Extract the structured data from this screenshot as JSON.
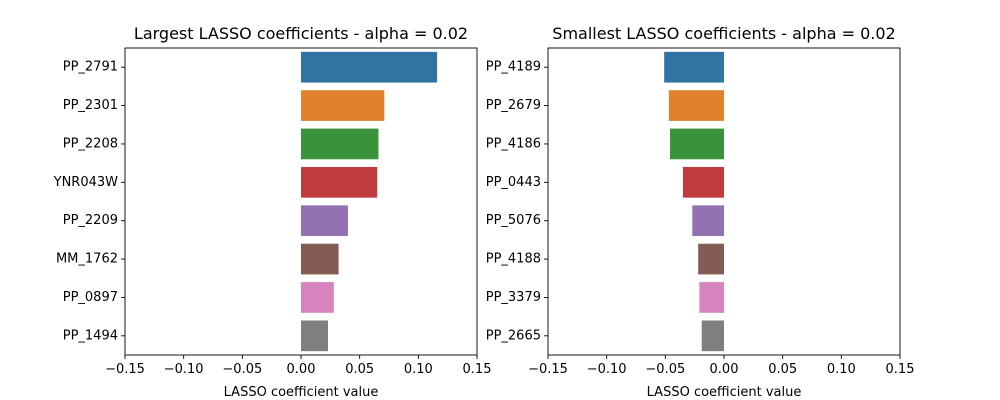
{
  "chart_data": [
    {
      "type": "bar",
      "orientation": "horizontal",
      "title": "Largest LASSO coefficients - alpha = 0.02",
      "xlabel": "LASSO coefficient value",
      "ylabel": "",
      "xlim": [
        -0.15,
        0.15
      ],
      "xticks": [
        "−0.15",
        "−0.10",
        "−0.05",
        "0.00",
        "0.05",
        "0.10",
        "0.15"
      ],
      "xtick_values": [
        -0.15,
        -0.1,
        -0.05,
        0.0,
        0.05,
        0.1,
        0.15
      ],
      "grid": false,
      "categories": [
        "PP_2791",
        "PP_2301",
        "PP_2208",
        "YNR043W",
        "PP_2209",
        "MM_1762",
        "PP_0897",
        "PP_1494"
      ],
      "values": [
        0.116,
        0.071,
        0.066,
        0.065,
        0.04,
        0.032,
        0.028,
        0.023
      ],
      "colors": [
        "#3274a1",
        "#e1812c",
        "#3a923a",
        "#c03d3e",
        "#9372b2",
        "#845b53",
        "#d684bd",
        "#7f7f7f"
      ]
    },
    {
      "type": "bar",
      "orientation": "horizontal",
      "title": "Smallest LASSO coefficients - alpha = 0.02",
      "xlabel": "LASSO coefficient value",
      "ylabel": "",
      "xlim": [
        -0.15,
        0.15
      ],
      "xticks": [
        "−0.15",
        "−0.10",
        "−0.05",
        "0.00",
        "0.05",
        "0.10",
        "0.15"
      ],
      "xtick_values": [
        -0.15,
        -0.1,
        -0.05,
        0.0,
        0.05,
        0.1,
        0.15
      ],
      "grid": false,
      "categories": [
        "PP_4189",
        "PP_2679",
        "PP_4186",
        "PP_0443",
        "PP_5076",
        "PP_4188",
        "PP_3379",
        "PP_2665"
      ],
      "values": [
        -0.051,
        -0.047,
        -0.046,
        -0.035,
        -0.027,
        -0.022,
        -0.021,
        -0.019
      ],
      "colors": [
        "#3274a1",
        "#e1812c",
        "#3a923a",
        "#c03d3e",
        "#9372b2",
        "#845b53",
        "#d684bd",
        "#7f7f7f"
      ]
    }
  ]
}
